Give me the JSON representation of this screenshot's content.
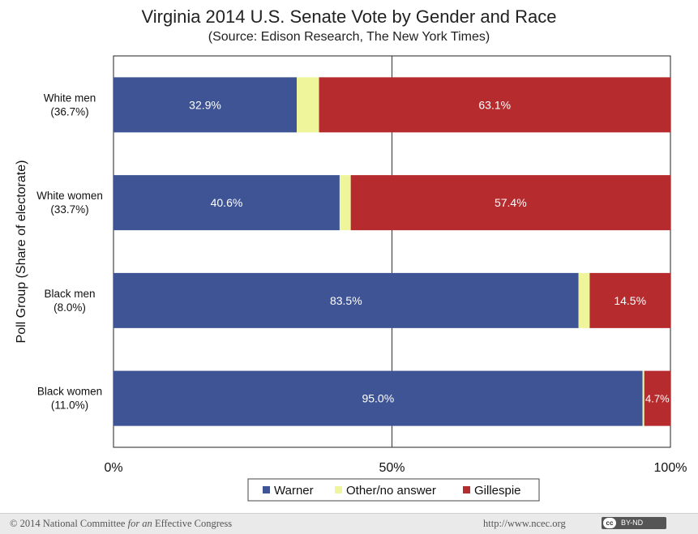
{
  "chart_data": {
    "type": "bar",
    "orientation": "horizontal",
    "stacked": true,
    "title": "Virginia 2014 U.S. Senate Vote by Gender and Race",
    "subtitle": "(Source: Edison Research, The New York Times)",
    "ylabel": "Poll Group (Share of electorate)",
    "xlabel": "",
    "xlim": [
      0,
      100
    ],
    "x_ticks": [
      "0%",
      "50%",
      "100%"
    ],
    "categories": [
      {
        "line1": "White men",
        "line2": "(36.7%)"
      },
      {
        "line1": "White women",
        "line2": "(33.7%)"
      },
      {
        "line1": "Black men",
        "line2": "(8.0%)"
      },
      {
        "line1": "Black women",
        "line2": "(11.0%)"
      }
    ],
    "series": [
      {
        "name": "Warner",
        "color": "#3e5495",
        "values": [
          32.9,
          40.6,
          83.5,
          95.0
        ],
        "labels": [
          "32.9%",
          "40.6%",
          "83.5%",
          "95.0%"
        ]
      },
      {
        "name": "Other/no answer",
        "color": "#eef59a",
        "values": [
          4.0,
          2.0,
          2.0,
          0.3
        ],
        "labels": [
          "",
          "",
          "",
          ""
        ]
      },
      {
        "name": "Gillespie",
        "color": "#b52b2e",
        "values": [
          63.1,
          57.4,
          14.5,
          4.7
        ],
        "labels": [
          "63.1%",
          "57.4%",
          "14.5%",
          "4.7%"
        ]
      }
    ],
    "legend_position": "bottom",
    "grid": "vertical line at 50%"
  },
  "footer": {
    "copyright_prefix": "© 2014 National Committee ",
    "copyright_italic": "for an",
    "copyright_suffix": " Effective Congress",
    "url": "http://www.ncec.org",
    "license_icon": "cc-icon",
    "license_text": "BY-ND"
  }
}
